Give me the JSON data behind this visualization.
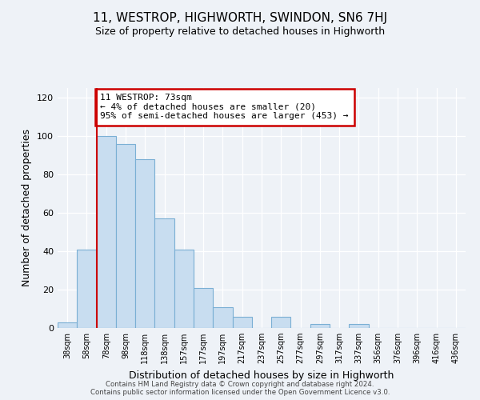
{
  "title": "11, WESTROP, HIGHWORTH, SWINDON, SN6 7HJ",
  "subtitle": "Size of property relative to detached houses in Highworth",
  "xlabel": "Distribution of detached houses by size in Highworth",
  "ylabel": "Number of detached properties",
  "bar_labels": [
    "38sqm",
    "58sqm",
    "78sqm",
    "98sqm",
    "118sqm",
    "138sqm",
    "157sqm",
    "177sqm",
    "197sqm",
    "217sqm",
    "237sqm",
    "257sqm",
    "277sqm",
    "297sqm",
    "317sqm",
    "337sqm",
    "356sqm",
    "376sqm",
    "396sqm",
    "416sqm",
    "436sqm"
  ],
  "bar_heights": [
    3,
    41,
    100,
    96,
    88,
    57,
    41,
    21,
    11,
    6,
    0,
    6,
    0,
    2,
    0,
    2,
    0,
    0,
    0,
    0,
    0
  ],
  "bar_color": "#c8ddf0",
  "bar_edge_color": "#7aafd4",
  "vline_x_index": 1,
  "vline_color": "#cc0000",
  "annotation_title": "11 WESTROP: 73sqm",
  "annotation_line1": "← 4% of detached houses are smaller (20)",
  "annotation_line2": "95% of semi-detached houses are larger (453) →",
  "annotation_box_color": "#ffffff",
  "annotation_box_edge": "#cc0000",
  "ylim": [
    0,
    125
  ],
  "yticks": [
    0,
    20,
    40,
    60,
    80,
    100,
    120
  ],
  "footer_line1": "Contains HM Land Registry data © Crown copyright and database right 2024.",
  "footer_line2": "Contains public sector information licensed under the Open Government Licence v3.0.",
  "background_color": "#eef2f7",
  "grid_color": "#ffffff",
  "title_fontsize": 11,
  "subtitle_fontsize": 9,
  "ylabel_fontsize": 9,
  "xlabel_fontsize": 9
}
